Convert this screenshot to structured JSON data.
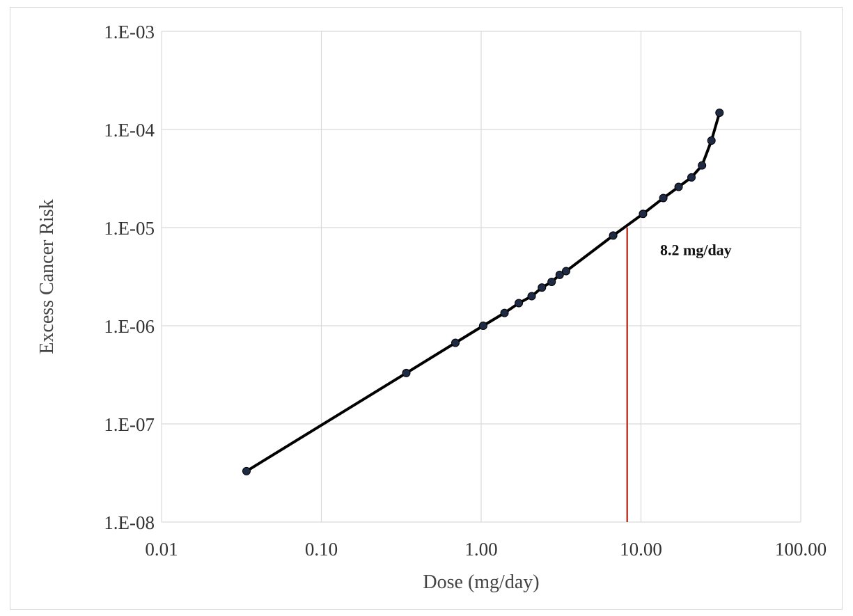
{
  "chart_data": {
    "type": "line",
    "title": "",
    "xlabel": "Dose (mg/day)",
    "ylabel": "Excess Cancer Risk",
    "x_scale": "log",
    "y_scale": "log",
    "xlim": [
      0.01,
      100
    ],
    "ylim": [
      1e-08,
      0.001
    ],
    "x_ticks": [
      {
        "value": 0.01,
        "label": "0.01"
      },
      {
        "value": 0.1,
        "label": "0.10"
      },
      {
        "value": 1,
        "label": "1.00"
      },
      {
        "value": 10,
        "label": "10.00"
      },
      {
        "value": 100,
        "label": "100.00"
      }
    ],
    "y_ticks": [
      {
        "value": 1e-08,
        "label": "1.E-08"
      },
      {
        "value": 1e-07,
        "label": "1.E-07"
      },
      {
        "value": 1e-06,
        "label": "1.E-06"
      },
      {
        "value": 1e-05,
        "label": "1.E-05"
      },
      {
        "value": 0.0001,
        "label": "1.E-04"
      },
      {
        "value": 0.001,
        "label": "1.E-03"
      }
    ],
    "grid": true,
    "series": [
      {
        "color": "#000000",
        "marker_color": "#1f2a44",
        "points": [
          {
            "x": 0.034,
            "y": 3.3e-08
          },
          {
            "x": 0.34,
            "y": 3.3e-07
          },
          {
            "x": 0.69,
            "y": 6.7e-07
          },
          {
            "x": 1.03,
            "y": 1e-06
          },
          {
            "x": 1.4,
            "y": 1.35e-06
          },
          {
            "x": 1.72,
            "y": 1.7e-06
          },
          {
            "x": 2.07,
            "y": 2e-06
          },
          {
            "x": 2.4,
            "y": 2.45e-06
          },
          {
            "x": 2.76,
            "y": 2.8e-06
          },
          {
            "x": 3.1,
            "y": 3.3e-06
          },
          {
            "x": 3.4,
            "y": 3.6e-06
          },
          {
            "x": 6.7,
            "y": 8.3e-06
          },
          {
            "x": 10.3,
            "y": 1.38e-05
          },
          {
            "x": 13.8,
            "y": 2e-05
          },
          {
            "x": 17.2,
            "y": 2.6e-05
          },
          {
            "x": 20.7,
            "y": 3.25e-05
          },
          {
            "x": 24.1,
            "y": 4.3e-05
          },
          {
            "x": 27.6,
            "y": 7.7e-05
          },
          {
            "x": 31.0,
            "y": 0.000148
          }
        ]
      }
    ],
    "reference_line": {
      "x": 8.2,
      "y_top": 1e-05,
      "color": "#c0392b"
    },
    "annotation": {
      "text": "8.2 mg/day",
      "x": 18,
      "y": 6e-06
    }
  }
}
